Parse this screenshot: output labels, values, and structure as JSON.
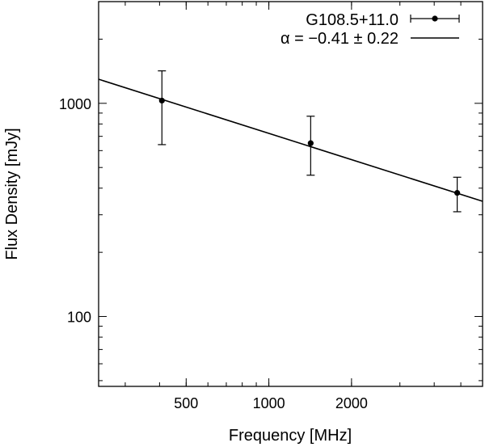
{
  "chart_data": {
    "type": "scatter",
    "xscale": "log",
    "yscale": "log",
    "xlim": [
      240,
      6000
    ],
    "ylim": [
      47,
      3000
    ],
    "xlabel": "Frequency [MHz]",
    "ylabel": "Flux Density [mJy]",
    "x_ticks": [
      500,
      1000,
      2000
    ],
    "x_tick_labels": [
      "500",
      "1000",
      "2000"
    ],
    "y_ticks": [
      100,
      1000
    ],
    "y_tick_labels": [
      "100",
      "1000"
    ],
    "grid": false,
    "legend_position": "top-right",
    "series": [
      {
        "name": "G108.5+11.0",
        "kind": "points-with-errorbars",
        "x": [
          408,
          1420,
          4850
        ],
        "y": [
          1030,
          650,
          380
        ],
        "yerr_low": [
          390,
          190,
          70
        ],
        "yerr_high": [
          390,
          220,
          70
        ]
      },
      {
        "name": "α = −0.41 ± 0.22",
        "kind": "power-law-fit",
        "alpha": -0.41,
        "alpha_err": 0.22,
        "x": [
          240,
          6000
        ],
        "y": [
          1297,
          347
        ]
      }
    ]
  }
}
